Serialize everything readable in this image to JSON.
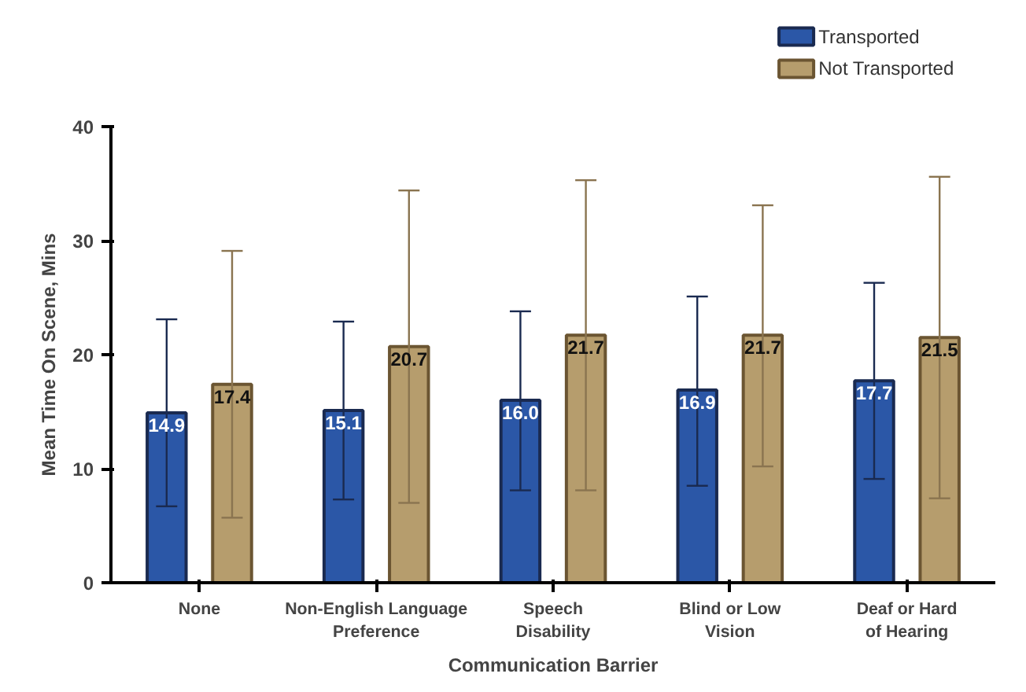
{
  "chart_data": {
    "type": "bar",
    "xlabel": "Communication Barrier",
    "ylabel": "Mean Time On Scene, Mins",
    "categories": [
      "None",
      "Non-English Language Preference",
      "Speech Disability",
      "Blind or Low Vision",
      "Deaf or Hard of Hearing"
    ],
    "series": [
      {
        "name": "Transported",
        "color": "#2b57a7",
        "values": [
          14.9,
          15.1,
          16.0,
          16.9,
          17.7
        ],
        "value_labels": [
          "14.9",
          "15.1",
          "16.0",
          "16.9",
          "17.7"
        ],
        "errors": [
          [
            6.7,
            23.1
          ],
          [
            7.3,
            22.9
          ],
          [
            8.1,
            23.8
          ],
          [
            8.5,
            25.1
          ],
          [
            9.1,
            26.3
          ]
        ]
      },
      {
        "name": "Not Transported",
        "color": "#b69d6d",
        "values": [
          17.4,
          20.7,
          21.7,
          21.7,
          21.5
        ],
        "value_labels": [
          "17.4",
          "20.7",
          "21.7",
          "21.7",
          "21.5"
        ],
        "errors": [
          [
            5.7,
            29.1
          ],
          [
            7.0,
            34.4
          ],
          [
            8.1,
            35.3
          ],
          [
            10.2,
            33.1
          ],
          [
            7.4,
            35.6
          ]
        ]
      }
    ],
    "ylim": [
      0,
      40
    ],
    "yticks": [
      0,
      10,
      20,
      30,
      40
    ],
    "grid": false,
    "legend": "top right"
  }
}
